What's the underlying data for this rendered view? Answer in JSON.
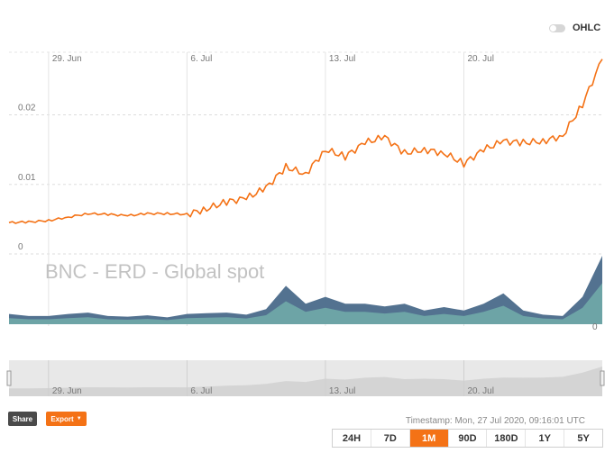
{
  "controls": {
    "ohlc_label": "OHLC"
  },
  "chart_data": {
    "type": "line",
    "title": "",
    "watermark": "BNC - ERD - Global spot",
    "x_range": [
      "2020-06-27",
      "2020-07-27"
    ],
    "x_tick_labels": [
      "29. Jun",
      "6. Jul",
      "13. Jul",
      "20. Jul"
    ],
    "y_tick_labels": [
      "0",
      "0.01",
      "0.02"
    ],
    "ylim": [
      0,
      0.029
    ],
    "volume_tick_labels": [
      "0"
    ],
    "grid": true,
    "series": [
      {
        "type": "line",
        "color": "#f47216",
        "points": [
          [
            "2020-06-27",
            0.0045
          ],
          [
            "2020-06-28",
            0.0046
          ],
          [
            "2020-06-29",
            0.0048
          ],
          [
            "2020-06-30",
            0.0053
          ],
          [
            "2020-07-01",
            0.0058
          ],
          [
            "2020-07-02",
            0.0057
          ],
          [
            "2020-07-03",
            0.0055
          ],
          [
            "2020-07-04",
            0.0058
          ],
          [
            "2020-07-05",
            0.0058
          ],
          [
            "2020-07-06",
            0.0057
          ],
          [
            "2020-07-07",
            0.0065
          ],
          [
            "2020-07-08",
            0.0075
          ],
          [
            "2020-07-09",
            0.008
          ],
          [
            "2020-07-10",
            0.0095
          ],
          [
            "2020-07-11",
            0.0125
          ],
          [
            "2020-07-12",
            0.0115
          ],
          [
            "2020-07-13",
            0.015
          ],
          [
            "2020-07-14",
            0.014
          ],
          [
            "2020-07-15",
            0.016
          ],
          [
            "2020-07-16",
            0.0168
          ],
          [
            "2020-07-17",
            0.0145
          ],
          [
            "2020-07-18",
            0.015
          ],
          [
            "2020-07-19",
            0.0145
          ],
          [
            "2020-07-20",
            0.013
          ],
          [
            "2020-07-21",
            0.015
          ],
          [
            "2020-07-22",
            0.0162
          ],
          [
            "2020-07-23",
            0.016
          ],
          [
            "2020-07-24",
            0.0162
          ],
          [
            "2020-07-25",
            0.017
          ],
          [
            "2020-07-26",
            0.0215
          ],
          [
            "2020-07-27",
            0.028
          ]
        ]
      },
      {
        "type": "volume",
        "colors": [
          "#4a6a8a",
          "#6fa6a8"
        ],
        "points": [
          [
            "2020-06-27",
            0.15
          ],
          [
            "2020-06-28",
            0.12
          ],
          [
            "2020-06-29",
            0.12
          ],
          [
            "2020-06-30",
            0.15
          ],
          [
            "2020-07-01",
            0.17
          ],
          [
            "2020-07-02",
            0.12
          ],
          [
            "2020-07-03",
            0.11
          ],
          [
            "2020-07-04",
            0.13
          ],
          [
            "2020-07-05",
            0.1
          ],
          [
            "2020-07-06",
            0.15
          ],
          [
            "2020-07-07",
            0.16
          ],
          [
            "2020-07-08",
            0.17
          ],
          [
            "2020-07-09",
            0.14
          ],
          [
            "2020-07-10",
            0.22
          ],
          [
            "2020-07-11",
            0.56
          ],
          [
            "2020-07-12",
            0.3
          ],
          [
            "2020-07-13",
            0.4
          ],
          [
            "2020-07-14",
            0.3
          ],
          [
            "2020-07-15",
            0.3
          ],
          [
            "2020-07-16",
            0.26
          ],
          [
            "2020-07-17",
            0.3
          ],
          [
            "2020-07-18",
            0.2
          ],
          [
            "2020-07-19",
            0.25
          ],
          [
            "2020-07-20",
            0.2
          ],
          [
            "2020-07-21",
            0.3
          ],
          [
            "2020-07-22",
            0.45
          ],
          [
            "2020-07-23",
            0.2
          ],
          [
            "2020-07-24",
            0.14
          ],
          [
            "2020-07-25",
            0.12
          ],
          [
            "2020-07-26",
            0.4
          ],
          [
            "2020-07-27",
            1.0
          ]
        ]
      }
    ],
    "navigator": {
      "x_tick_labels": [
        "29. Jun",
        "6. Jul",
        "13. Jul",
        "20. Jul"
      ]
    }
  },
  "buttons": {
    "share": "Share",
    "export": "Export",
    "ranges": [
      "24H",
      "7D",
      "1M",
      "90D",
      "180D",
      "1Y",
      "5Y"
    ],
    "active_range": "1M"
  },
  "timestamp": "Timestamp: Mon, 27 Jul 2020, 09:16:01 UTC"
}
